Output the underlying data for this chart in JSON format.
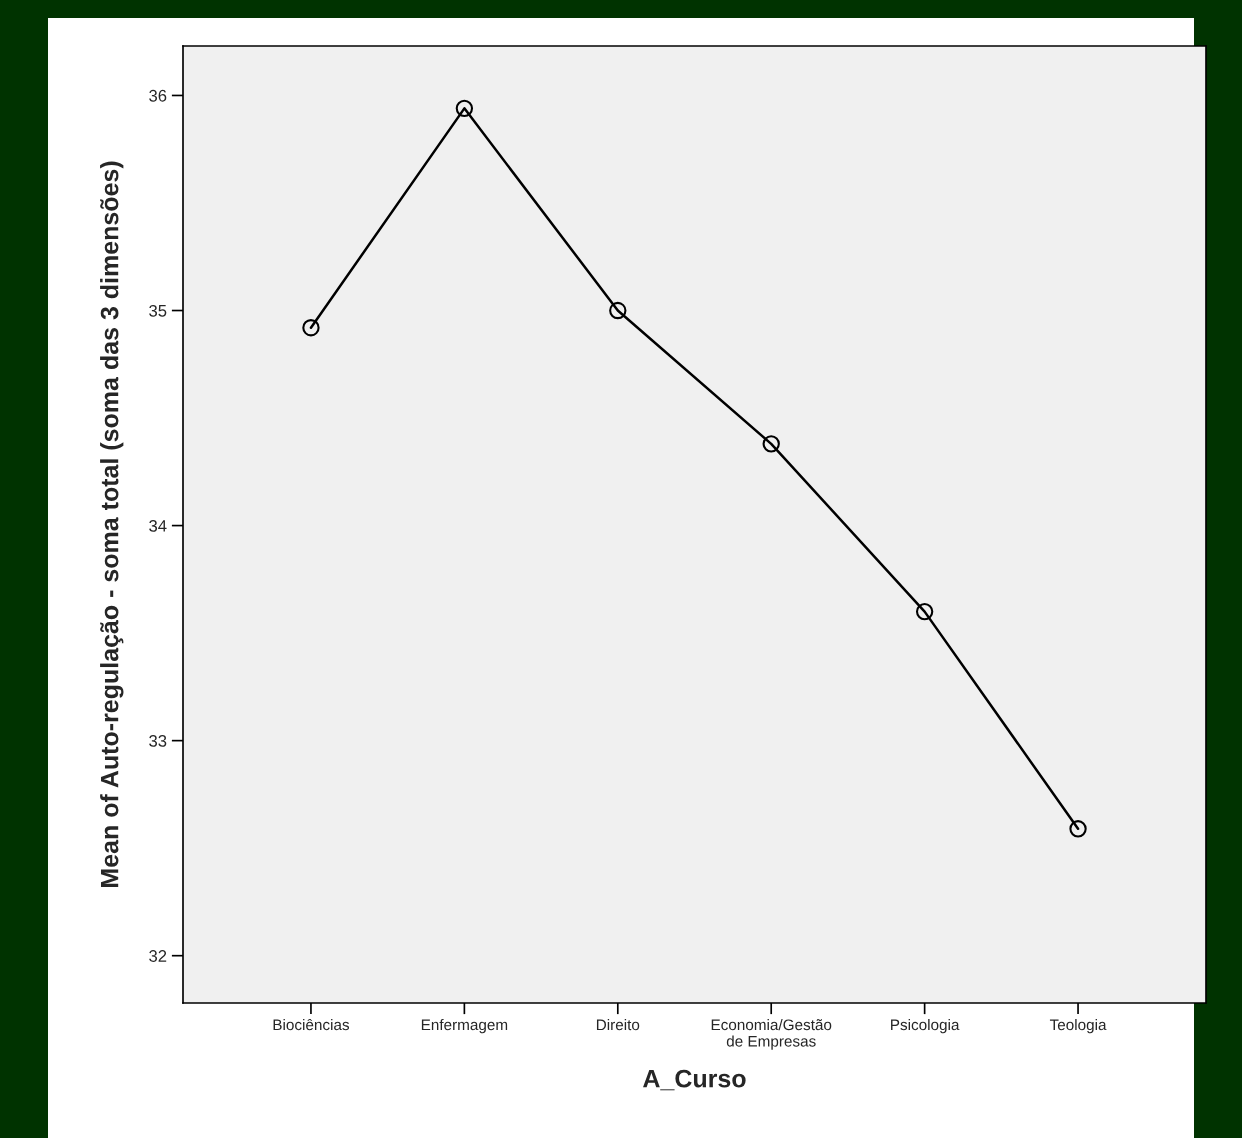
{
  "chart_data": {
    "type": "line",
    "xlabel": "A_Curso",
    "ylabel": "Mean of Auto-regulação - soma total (soma das 3 dimensões)",
    "categories": [
      "Biociências",
      "Enfermagem",
      "Direito",
      "Economia/Gestão\nde Empresas",
      "Psicologia",
      "Teologia"
    ],
    "series": [
      {
        "color": "#000000",
        "values": [
          34.92,
          35.94,
          35.0,
          34.38,
          33.6,
          32.59
        ]
      }
    ],
    "ylim": [
      31.78,
      36.23
    ],
    "yticks": [
      32,
      33,
      34,
      35,
      36
    ],
    "marker": "circle",
    "line_style": "solid",
    "grid": false
  }
}
